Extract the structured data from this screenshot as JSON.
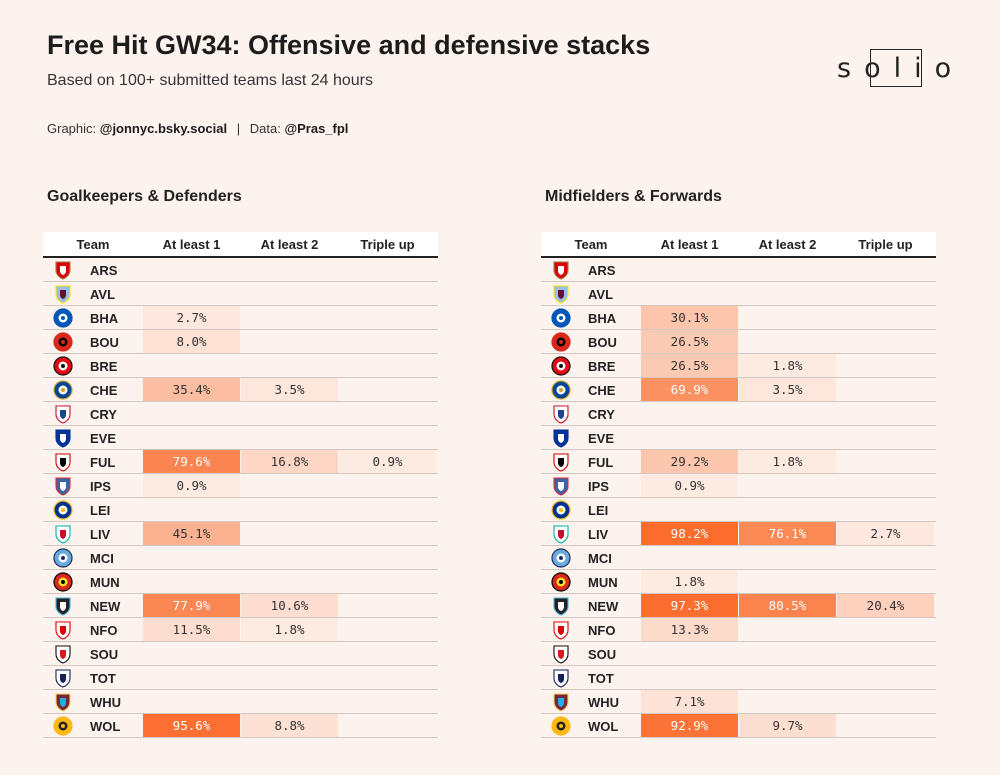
{
  "title": "Free Hit GW34: Offensive and defensive stacks",
  "subtitle": "Based on 100+ submitted teams last 24 hours",
  "credits": {
    "graphic_label": "Graphic:",
    "graphic_handle": "@jonnyc.bsky.social",
    "separator": "|",
    "data_label": "Data:",
    "data_handle": "@Pras_fpl"
  },
  "logo_text": "solio",
  "colors": {
    "background": "#fdf3ee",
    "heat_low": "#fde5da",
    "heat_high": "#fb6a2a"
  },
  "columns": [
    "Team",
    "At least 1",
    "At least 2",
    "Triple up"
  ],
  "chart_data": [
    {
      "type": "table",
      "title": "Goalkeepers & Defenders",
      "rows": [
        {
          "team": "ARS",
          "icon": "arsenal-crest-icon",
          "values": [
            null,
            null,
            null
          ]
        },
        {
          "team": "AVL",
          "icon": "aston-villa-crest-icon",
          "values": [
            null,
            null,
            null
          ]
        },
        {
          "team": "BHA",
          "icon": "brighton-crest-icon",
          "values": [
            2.7,
            null,
            null
          ]
        },
        {
          "team": "BOU",
          "icon": "bournemouth-crest-icon",
          "values": [
            8.0,
            null,
            null
          ]
        },
        {
          "team": "BRE",
          "icon": "brentford-crest-icon",
          "values": [
            null,
            null,
            null
          ]
        },
        {
          "team": "CHE",
          "icon": "chelsea-crest-icon",
          "values": [
            35.4,
            3.5,
            null
          ]
        },
        {
          "team": "CRY",
          "icon": "crystal-palace-crest-icon",
          "values": [
            null,
            null,
            null
          ]
        },
        {
          "team": "EVE",
          "icon": "everton-crest-icon",
          "values": [
            null,
            null,
            null
          ]
        },
        {
          "team": "FUL",
          "icon": "fulham-crest-icon",
          "values": [
            79.6,
            16.8,
            0.9
          ]
        },
        {
          "team": "IPS",
          "icon": "ipswich-crest-icon",
          "values": [
            0.9,
            null,
            null
          ]
        },
        {
          "team": "LEI",
          "icon": "leicester-crest-icon",
          "values": [
            null,
            null,
            null
          ]
        },
        {
          "team": "LIV",
          "icon": "liverpool-crest-icon",
          "values": [
            45.1,
            null,
            null
          ]
        },
        {
          "team": "MCI",
          "icon": "man-city-crest-icon",
          "values": [
            null,
            null,
            null
          ]
        },
        {
          "team": "MUN",
          "icon": "man-united-crest-icon",
          "values": [
            null,
            null,
            null
          ]
        },
        {
          "team": "NEW",
          "icon": "newcastle-crest-icon",
          "values": [
            77.9,
            10.6,
            null
          ]
        },
        {
          "team": "NFO",
          "icon": "nottingham-forest-crest-icon",
          "values": [
            11.5,
            1.8,
            null
          ]
        },
        {
          "team": "SOU",
          "icon": "southampton-crest-icon",
          "values": [
            null,
            null,
            null
          ]
        },
        {
          "team": "TOT",
          "icon": "tottenham-crest-icon",
          "values": [
            null,
            null,
            null
          ]
        },
        {
          "team": "WHU",
          "icon": "west-ham-crest-icon",
          "values": [
            null,
            null,
            null
          ]
        },
        {
          "team": "WOL",
          "icon": "wolves-crest-icon",
          "values": [
            95.6,
            8.8,
            null
          ]
        }
      ]
    },
    {
      "type": "table",
      "title": "Midfielders & Forwards",
      "rows": [
        {
          "team": "ARS",
          "icon": "arsenal-crest-icon",
          "values": [
            null,
            null,
            null
          ]
        },
        {
          "team": "AVL",
          "icon": "aston-villa-crest-icon",
          "values": [
            null,
            null,
            null
          ]
        },
        {
          "team": "BHA",
          "icon": "brighton-crest-icon",
          "values": [
            30.1,
            null,
            null
          ]
        },
        {
          "team": "BOU",
          "icon": "bournemouth-crest-icon",
          "values": [
            26.5,
            null,
            null
          ]
        },
        {
          "team": "BRE",
          "icon": "brentford-crest-icon",
          "values": [
            26.5,
            1.8,
            null
          ]
        },
        {
          "team": "CHE",
          "icon": "chelsea-crest-icon",
          "values": [
            69.9,
            3.5,
            null
          ]
        },
        {
          "team": "CRY",
          "icon": "crystal-palace-crest-icon",
          "values": [
            null,
            null,
            null
          ]
        },
        {
          "team": "EVE",
          "icon": "everton-crest-icon",
          "values": [
            null,
            null,
            null
          ]
        },
        {
          "team": "FUL",
          "icon": "fulham-crest-icon",
          "values": [
            29.2,
            1.8,
            null
          ]
        },
        {
          "team": "IPS",
          "icon": "ipswich-crest-icon",
          "values": [
            0.9,
            null,
            null
          ]
        },
        {
          "team": "LEI",
          "icon": "leicester-crest-icon",
          "values": [
            null,
            null,
            null
          ]
        },
        {
          "team": "LIV",
          "icon": "liverpool-crest-icon",
          "values": [
            98.2,
            76.1,
            2.7
          ]
        },
        {
          "team": "MCI",
          "icon": "man-city-crest-icon",
          "values": [
            null,
            null,
            null
          ]
        },
        {
          "team": "MUN",
          "icon": "man-united-crest-icon",
          "values": [
            1.8,
            null,
            null
          ]
        },
        {
          "team": "NEW",
          "icon": "newcastle-crest-icon",
          "values": [
            97.3,
            80.5,
            20.4
          ]
        },
        {
          "team": "NFO",
          "icon": "nottingham-forest-crest-icon",
          "values": [
            13.3,
            null,
            null
          ]
        },
        {
          "team": "SOU",
          "icon": "southampton-crest-icon",
          "values": [
            null,
            null,
            null
          ]
        },
        {
          "team": "TOT",
          "icon": "tottenham-crest-icon",
          "values": [
            null,
            null,
            null
          ]
        },
        {
          "team": "WHU",
          "icon": "west-ham-crest-icon",
          "values": [
            7.1,
            null,
            null
          ]
        },
        {
          "team": "WOL",
          "icon": "wolves-crest-icon",
          "values": [
            92.9,
            9.7,
            null
          ]
        }
      ]
    }
  ]
}
